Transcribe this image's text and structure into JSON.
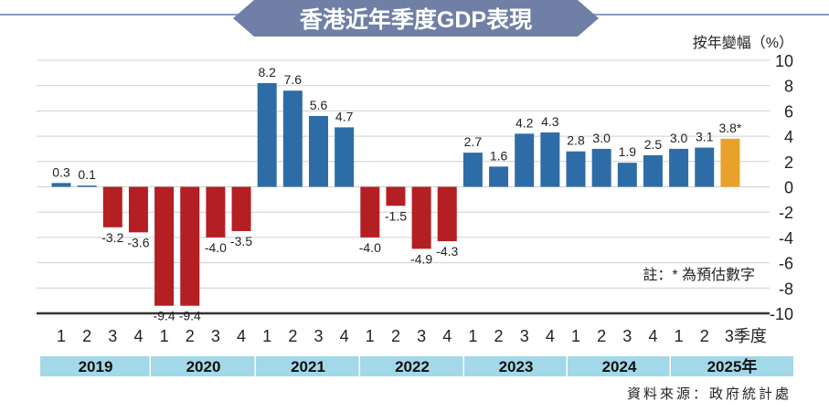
{
  "title": "香港近年季度GDP表現",
  "colors": {
    "positive": "#2e6ca8",
    "negative": "#b41f24",
    "estimate": "#e8a22b",
    "banner": "#6f7fa5",
    "year_band": "#a3d8e8"
  },
  "chart_data": {
    "type": "bar",
    "title": "香港近年季度GDP表現",
    "ylabel": "按年變幅（%）",
    "ylim": [
      -10,
      10
    ],
    "yticks": [
      10,
      8,
      6,
      4,
      2,
      0,
      -2,
      -4,
      -6,
      -8,
      -10
    ],
    "grid": true,
    "categories": [
      "1",
      "2",
      "3",
      "4",
      "1",
      "2",
      "3",
      "4",
      "1",
      "2",
      "3",
      "4",
      "1",
      "2",
      "3",
      "4",
      "1",
      "2",
      "3",
      "4",
      "1",
      "2",
      "3",
      "4",
      "1",
      "2",
      "3季度"
    ],
    "years": [
      "2019",
      "2020",
      "2021",
      "2022",
      "2023",
      "2024",
      "2025年"
    ],
    "values": [
      0.3,
      0.1,
      -3.2,
      -3.6,
      -9.4,
      -9.4,
      -4.0,
      -3.5,
      8.2,
      7.6,
      5.6,
      4.7,
      -4.0,
      -1.5,
      -4.9,
      -4.3,
      2.7,
      1.6,
      4.2,
      4.3,
      2.8,
      3.0,
      1.9,
      2.5,
      3.0,
      3.1,
      3.8
    ],
    "data_labels": [
      "0.3",
      "0.1",
      "-3.2",
      "-3.6",
      "-9.4",
      "-9.4",
      "-4.0",
      "-3.5",
      "8.2",
      "7.6",
      "5.6",
      "4.7",
      "-4.0",
      "-1.5",
      "-4.9",
      "-4.3",
      "2.7",
      "1.6",
      "4.2",
      "4.3",
      "2.8",
      "3.0",
      "1.9",
      "2.5",
      "3.0",
      "3.1",
      "3.8*"
    ],
    "estimated": [
      26
    ],
    "note": "註：* 為預估數字",
    "source": "資料來源：政府統計處"
  }
}
